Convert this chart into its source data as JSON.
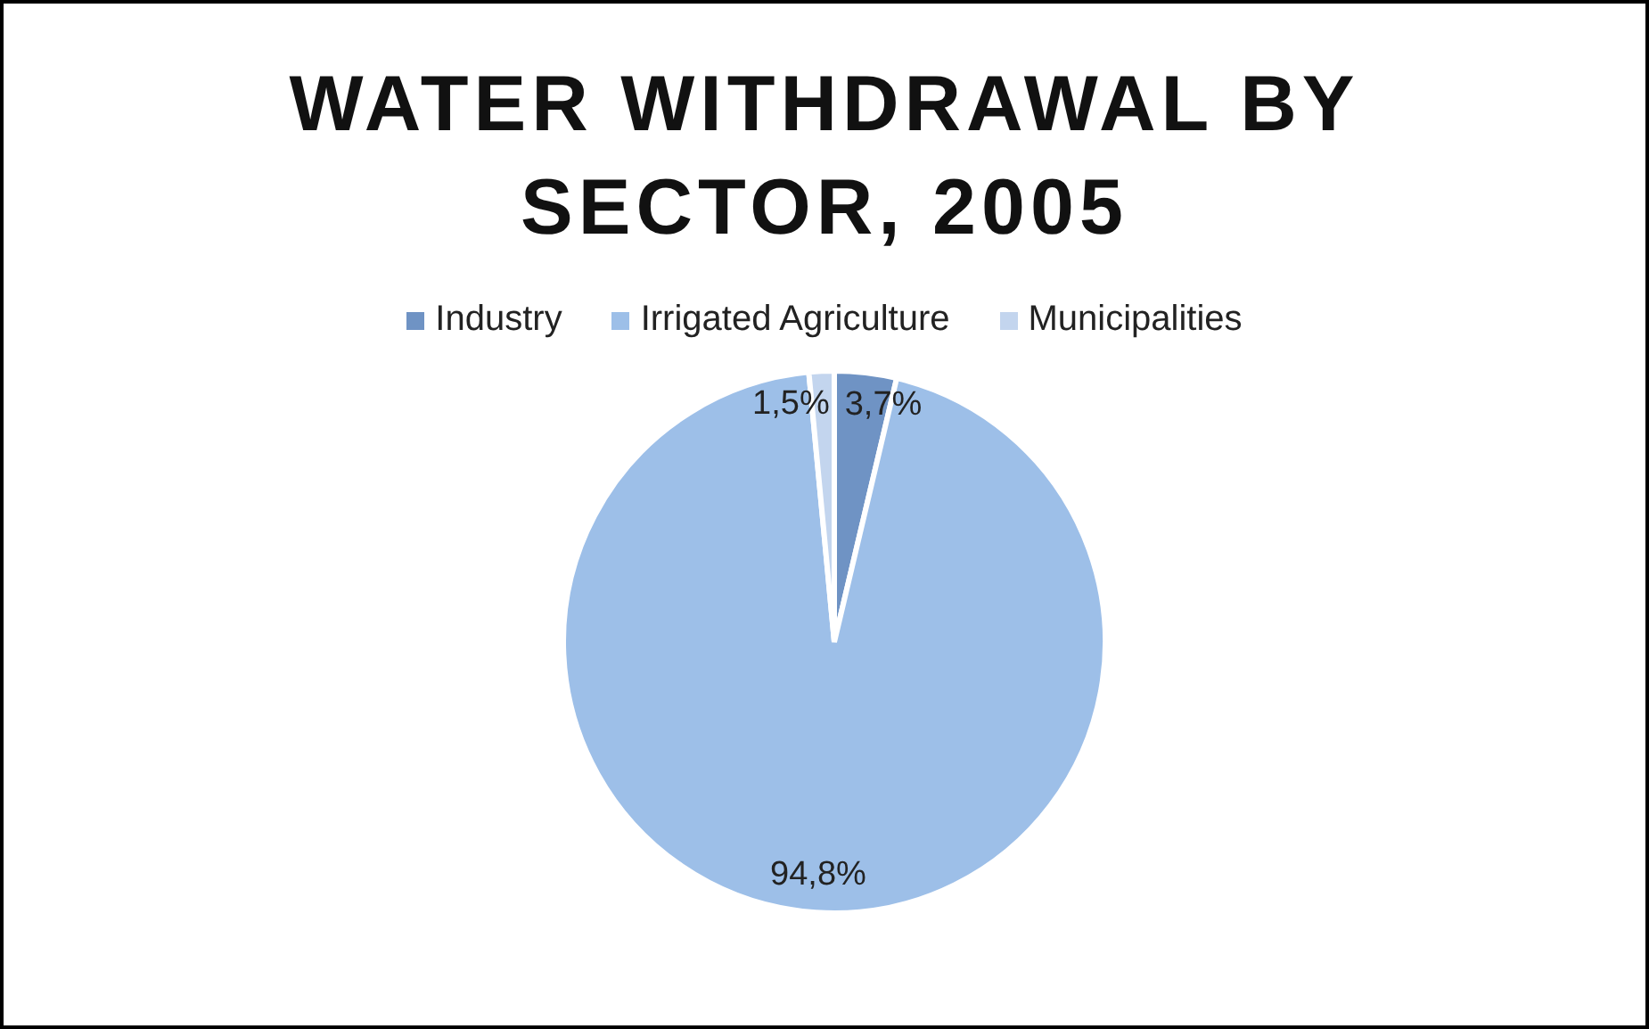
{
  "chart_data": {
    "type": "pie",
    "title": "WATER WITHDRAWAL BY SECTOR, 2005",
    "categories": [
      "Industry",
      "Irrigated Agriculture",
      "Municipalities"
    ],
    "values": [
      3.7,
      94.8,
      1.5
    ],
    "value_labels": [
      "3,7%",
      "94,8%",
      "1,5%"
    ],
    "colors": [
      "#6f93c4",
      "#9dbfe8",
      "#c3d5ee"
    ],
    "legend": "top"
  }
}
